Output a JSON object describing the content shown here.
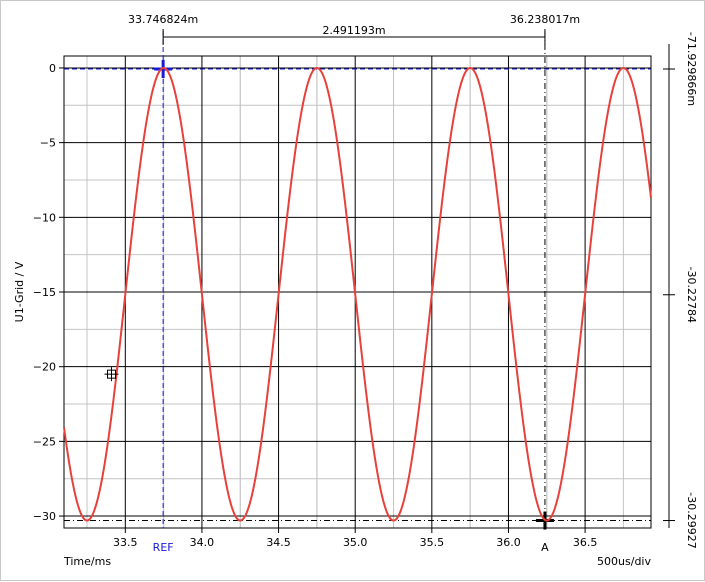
{
  "chart_data": {
    "type": "line",
    "xlabel": "Time/ms",
    "ylabel": "U1-Grid / V",
    "x_ticks": [
      "33.5",
      "34.0",
      "34.5",
      "35.0",
      "35.5",
      "36.0",
      "36.5"
    ],
    "x_tick_values": [
      33.5,
      34.0,
      34.5,
      35.0,
      35.5,
      36.0,
      36.5
    ],
    "y_ticks": [
      "0",
      "−5",
      "−10",
      "−15",
      "−20",
      "−25",
      "−30"
    ],
    "y_tick_values": [
      0,
      -5,
      -10,
      -15,
      -20,
      -25,
      -30
    ],
    "xlim": [
      33.1,
      36.93
    ],
    "ylim": [
      -30.8,
      0.8
    ],
    "grid": true,
    "timebase": "500us/div",
    "series": [
      {
        "color": "#e8403a",
        "waveform": "sine",
        "offset": -15.15,
        "amplitude": 15.15,
        "period_ms": 1.0,
        "peak_at_ms": 33.75
      }
    ],
    "cursors": {
      "ref": {
        "label": "REF",
        "x": 33.746824,
        "x_label": "33.746824m",
        "y": -0.07,
        "color": "#1a1ad6"
      },
      "a": {
        "label": "A",
        "x": 36.238017,
        "x_label": "36.238017m",
        "y": -30.3,
        "color": "#000000"
      },
      "delta_label": "2.491193m"
    },
    "right_axis_labels": [
      "-71.929866m",
      "-30.22784",
      "-30.29927"
    ],
    "marker": {
      "x": 33.41,
      "y": -20.5
    }
  }
}
